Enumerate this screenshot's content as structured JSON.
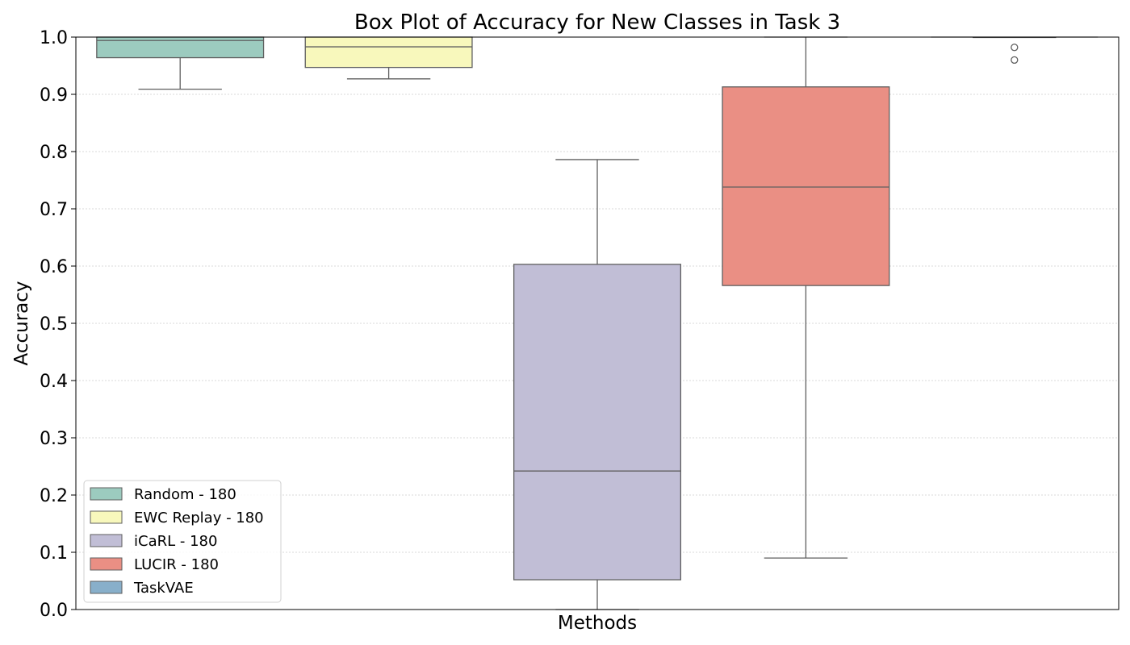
{
  "chart_data": {
    "type": "box",
    "title": "Box Plot of Accuracy for New Classes in Task 3",
    "xlabel": "Methods",
    "ylabel": "Accuracy",
    "ylim": [
      0.0,
      1.0
    ],
    "yticks": [
      "0.0",
      "0.1",
      "0.2",
      "0.3",
      "0.4",
      "0.5",
      "0.6",
      "0.7",
      "0.8",
      "0.9",
      "1.0"
    ],
    "grid": "y dotted",
    "legend_position": "bottom-left",
    "series": [
      {
        "name": "Random - 180",
        "color": "#9ccbbf",
        "whisker_low": 0.909,
        "q1": 0.964,
        "median": 0.994,
        "q3": 1.0,
        "whisker_high": 1.0,
        "outliers": []
      },
      {
        "name": "EWC Replay - 180",
        "color": "#f8f8bc",
        "whisker_low": 0.927,
        "q1": 0.947,
        "median": 0.983,
        "q3": 1.0,
        "whisker_high": 1.0,
        "outliers": []
      },
      {
        "name": "iCaRL - 180",
        "color": "#c1bed6",
        "whisker_low": 0.0,
        "q1": 0.052,
        "median": 0.242,
        "q3": 0.603,
        "whisker_high": 0.786,
        "outliers": []
      },
      {
        "name": "LUCIR - 180",
        "color": "#ea8f84",
        "whisker_low": 0.09,
        "q1": 0.566,
        "median": 0.738,
        "q3": 0.913,
        "whisker_high": 1.0,
        "outliers": []
      },
      {
        "name": "TaskVAE",
        "color": "#88afca",
        "whisker_low": 1.0,
        "q1": 1.0,
        "median": 1.0,
        "q3": 1.0,
        "whisker_high": 1.0,
        "outliers": [
          0.982,
          0.96
        ]
      }
    ]
  }
}
